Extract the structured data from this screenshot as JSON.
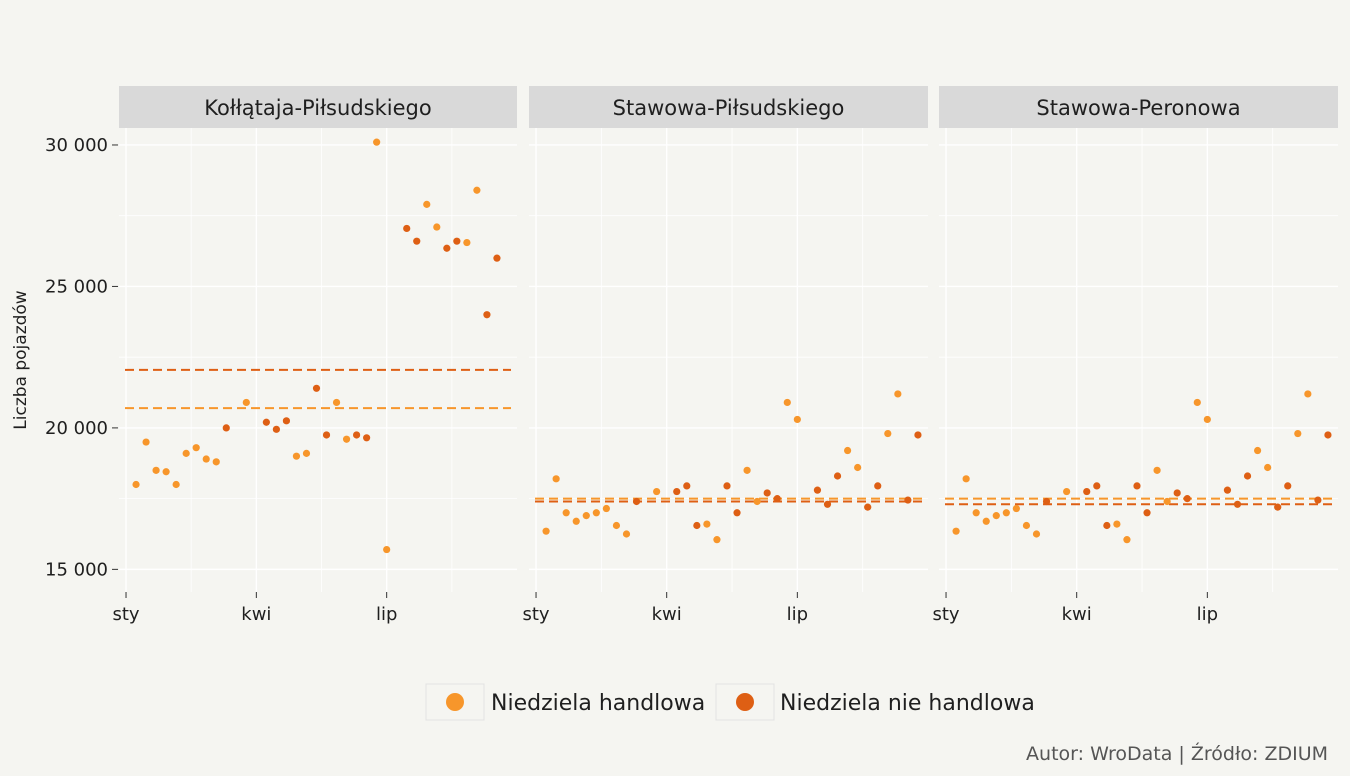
{
  "chart_data": {
    "type": "scatter",
    "ylabel": "Liczba pojazdów",
    "ylim": [
      14200,
      30600
    ],
    "y_ticks": [
      15000,
      20000,
      25000,
      30000
    ],
    "y_tick_labels": [
      "15 000",
      "20 000",
      "25 000",
      "30 000"
    ],
    "x_ticks": [
      0,
      13,
      26
    ],
    "x_tick_labels": [
      "sty",
      "kwi",
      "lip"
    ],
    "xlim": [
      -0.7,
      39
    ],
    "grid": true,
    "legend_position": "bottom",
    "colors": {
      "Niedziela handlowa": "#f7962b",
      "Niedziela nie handlowa": "#de5f14"
    },
    "legend": [
      {
        "label": "Niedziela handlowa",
        "color": "#f7962b"
      },
      {
        "label": "Niedziela nie handlowa",
        "color": "#de5f14"
      }
    ],
    "caption": "Autor: WroData | Źródło: ZDIUM",
    "panels": [
      {
        "title": "Kołłątaja-Piłsudskiego",
        "means": {
          "Niedziela handlowa": 20700,
          "Niedziela nie handlowa": 22050
        },
        "points": [
          {
            "x": 1,
            "y": 18000,
            "series": "Niedziela handlowa"
          },
          {
            "x": 2,
            "y": 19500,
            "series": "Niedziela handlowa"
          },
          {
            "x": 3,
            "y": 18500,
            "series": "Niedziela handlowa"
          },
          {
            "x": 4,
            "y": 18450,
            "series": "Niedziela handlowa"
          },
          {
            "x": 5,
            "y": 18000,
            "series": "Niedziela handlowa"
          },
          {
            "x": 6,
            "y": 19100,
            "series": "Niedziela handlowa"
          },
          {
            "x": 7,
            "y": 19300,
            "series": "Niedziela handlowa"
          },
          {
            "x": 8,
            "y": 18900,
            "series": "Niedziela handlowa"
          },
          {
            "x": 9,
            "y": 18800,
            "series": "Niedziela handlowa"
          },
          {
            "x": 10,
            "y": 20000,
            "series": "Niedziela nie handlowa"
          },
          {
            "x": 12,
            "y": 20900,
            "series": "Niedziela handlowa"
          },
          {
            "x": 14,
            "y": 20200,
            "series": "Niedziela nie handlowa"
          },
          {
            "x": 15,
            "y": 19950,
            "series": "Niedziela nie handlowa"
          },
          {
            "x": 16,
            "y": 20250,
            "series": "Niedziela nie handlowa"
          },
          {
            "x": 17,
            "y": 19000,
            "series": "Niedziela handlowa"
          },
          {
            "x": 18,
            "y": 19100,
            "series": "Niedziela handlowa"
          },
          {
            "x": 19,
            "y": 21400,
            "series": "Niedziela nie handlowa"
          },
          {
            "x": 20,
            "y": 19750,
            "series": "Niedziela nie handlowa"
          },
          {
            "x": 21,
            "y": 20900,
            "series": "Niedziela handlowa"
          },
          {
            "x": 22,
            "y": 19600,
            "series": "Niedziela handlowa"
          },
          {
            "x": 23,
            "y": 19750,
            "series": "Niedziela nie handlowa"
          },
          {
            "x": 24,
            "y": 19650,
            "series": "Niedziela nie handlowa"
          },
          {
            "x": 25,
            "y": 30100,
            "series": "Niedziela handlowa"
          },
          {
            "x": 26,
            "y": 15700,
            "series": "Niedziela handlowa"
          },
          {
            "x": 28,
            "y": 27050,
            "series": "Niedziela nie handlowa"
          },
          {
            "x": 29,
            "y": 26600,
            "series": "Niedziela nie handlowa"
          },
          {
            "x": 30,
            "y": 27900,
            "series": "Niedziela handlowa"
          },
          {
            "x": 31,
            "y": 27100,
            "series": "Niedziela handlowa"
          },
          {
            "x": 32,
            "y": 26350,
            "series": "Niedziela nie handlowa"
          },
          {
            "x": 33,
            "y": 26600,
            "series": "Niedziela nie handlowa"
          },
          {
            "x": 34,
            "y": 26550,
            "series": "Niedziela handlowa"
          },
          {
            "x": 35,
            "y": 28400,
            "series": "Niedziela handlowa"
          },
          {
            "x": 36,
            "y": 24000,
            "series": "Niedziela nie handlowa"
          },
          {
            "x": 37,
            "y": 26000,
            "series": "Niedziela nie handlowa"
          }
        ]
      },
      {
        "title": "Stawowa-Piłsudskiego",
        "means": {
          "Niedziela handlowa": 17500,
          "Niedziela nie handlowa": 17400
        },
        "points": [
          {
            "x": 1,
            "y": 16350,
            "series": "Niedziela handlowa"
          },
          {
            "x": 2,
            "y": 18200,
            "series": "Niedziela handlowa"
          },
          {
            "x": 3,
            "y": 17000,
            "series": "Niedziela handlowa"
          },
          {
            "x": 4,
            "y": 16700,
            "series": "Niedziela handlowa"
          },
          {
            "x": 5,
            "y": 16900,
            "series": "Niedziela handlowa"
          },
          {
            "x": 6,
            "y": 17000,
            "series": "Niedziela handlowa"
          },
          {
            "x": 7,
            "y": 17150,
            "series": "Niedziela handlowa"
          },
          {
            "x": 8,
            "y": 16550,
            "series": "Niedziela handlowa"
          },
          {
            "x": 9,
            "y": 16250,
            "series": "Niedziela handlowa"
          },
          {
            "x": 10,
            "y": 17400,
            "series": "Niedziela nie handlowa"
          },
          {
            "x": 12,
            "y": 17750,
            "series": "Niedziela handlowa"
          },
          {
            "x": 14,
            "y": 17750,
            "series": "Niedziela nie handlowa"
          },
          {
            "x": 15,
            "y": 17950,
            "series": "Niedziela nie handlowa"
          },
          {
            "x": 16,
            "y": 16550,
            "series": "Niedziela nie handlowa"
          },
          {
            "x": 17,
            "y": 16600,
            "series": "Niedziela handlowa"
          },
          {
            "x": 18,
            "y": 16050,
            "series": "Niedziela handlowa"
          },
          {
            "x": 19,
            "y": 17950,
            "series": "Niedziela nie handlowa"
          },
          {
            "x": 20,
            "y": 17000,
            "series": "Niedziela nie handlowa"
          },
          {
            "x": 21,
            "y": 18500,
            "series": "Niedziela handlowa"
          },
          {
            "x": 22,
            "y": 17400,
            "series": "Niedziela handlowa"
          },
          {
            "x": 23,
            "y": 17700,
            "series": "Niedziela nie handlowa"
          },
          {
            "x": 24,
            "y": 17500,
            "series": "Niedziela nie handlowa"
          },
          {
            "x": 25,
            "y": 20900,
            "series": "Niedziela handlowa"
          },
          {
            "x": 26,
            "y": 20300,
            "series": "Niedziela handlowa"
          },
          {
            "x": 28,
            "y": 17800,
            "series": "Niedziela nie handlowa"
          },
          {
            "x": 29,
            "y": 17300,
            "series": "Niedziela nie handlowa"
          },
          {
            "x": 30,
            "y": 18300,
            "series": "Niedziela nie handlowa"
          },
          {
            "x": 31,
            "y": 19200,
            "series": "Niedziela handlowa"
          },
          {
            "x": 32,
            "y": 18600,
            "series": "Niedziela handlowa"
          },
          {
            "x": 33,
            "y": 17200,
            "series": "Niedziela nie handlowa"
          },
          {
            "x": 34,
            "y": 17950,
            "series": "Niedziela nie handlowa"
          },
          {
            "x": 35,
            "y": 19800,
            "series": "Niedziela handlowa"
          },
          {
            "x": 36,
            "y": 21200,
            "series": "Niedziela handlowa"
          },
          {
            "x": 37,
            "y": 17450,
            "series": "Niedziela nie handlowa"
          },
          {
            "x": 38,
            "y": 19750,
            "series": "Niedziela nie handlowa"
          }
        ]
      },
      {
        "title": "Stawowa-Peronowa",
        "means": {
          "Niedziela handlowa": 17500,
          "Niedziela nie handlowa": 17300
        },
        "points": [
          {
            "x": 1,
            "y": 16350,
            "series": "Niedziela handlowa"
          },
          {
            "x": 2,
            "y": 18200,
            "series": "Niedziela handlowa"
          },
          {
            "x": 3,
            "y": 17000,
            "series": "Niedziela handlowa"
          },
          {
            "x": 4,
            "y": 16700,
            "series": "Niedziela handlowa"
          },
          {
            "x": 5,
            "y": 16900,
            "series": "Niedziela handlowa"
          },
          {
            "x": 6,
            "y": 17000,
            "series": "Niedziela handlowa"
          },
          {
            "x": 7,
            "y": 17150,
            "series": "Niedziela handlowa"
          },
          {
            "x": 8,
            "y": 16550,
            "series": "Niedziela handlowa"
          },
          {
            "x": 9,
            "y": 16250,
            "series": "Niedziela handlowa"
          },
          {
            "x": 10,
            "y": 17400,
            "series": "Niedziela nie handlowa"
          },
          {
            "x": 12,
            "y": 17750,
            "series": "Niedziela handlowa"
          },
          {
            "x": 14,
            "y": 17750,
            "series": "Niedziela nie handlowa"
          },
          {
            "x": 15,
            "y": 17950,
            "series": "Niedziela nie handlowa"
          },
          {
            "x": 16,
            "y": 16550,
            "series": "Niedziela nie handlowa"
          },
          {
            "x": 17,
            "y": 16600,
            "series": "Niedziela handlowa"
          },
          {
            "x": 18,
            "y": 16050,
            "series": "Niedziela handlowa"
          },
          {
            "x": 19,
            "y": 17950,
            "series": "Niedziela nie handlowa"
          },
          {
            "x": 20,
            "y": 17000,
            "series": "Niedziela nie handlowa"
          },
          {
            "x": 21,
            "y": 18500,
            "series": "Niedziela handlowa"
          },
          {
            "x": 22,
            "y": 17400,
            "series": "Niedziela handlowa"
          },
          {
            "x": 23,
            "y": 17700,
            "series": "Niedziela nie handlowa"
          },
          {
            "x": 24,
            "y": 17500,
            "series": "Niedziela nie handlowa"
          },
          {
            "x": 25,
            "y": 20900,
            "series": "Niedziela handlowa"
          },
          {
            "x": 26,
            "y": 20300,
            "series": "Niedziela handlowa"
          },
          {
            "x": 28,
            "y": 17800,
            "series": "Niedziela nie handlowa"
          },
          {
            "x": 29,
            "y": 17300,
            "series": "Niedziela nie handlowa"
          },
          {
            "x": 30,
            "y": 18300,
            "series": "Niedziela nie handlowa"
          },
          {
            "x": 31,
            "y": 19200,
            "series": "Niedziela handlowa"
          },
          {
            "x": 32,
            "y": 18600,
            "series": "Niedziela handlowa"
          },
          {
            "x": 33,
            "y": 17200,
            "series": "Niedziela nie handlowa"
          },
          {
            "x": 34,
            "y": 17950,
            "series": "Niedziela nie handlowa"
          },
          {
            "x": 35,
            "y": 19800,
            "series": "Niedziela handlowa"
          },
          {
            "x": 36,
            "y": 21200,
            "series": "Niedziela handlowa"
          },
          {
            "x": 37,
            "y": 17450,
            "series": "Niedziela nie handlowa"
          },
          {
            "x": 38,
            "y": 19750,
            "series": "Niedziela nie handlowa"
          }
        ]
      }
    ]
  }
}
